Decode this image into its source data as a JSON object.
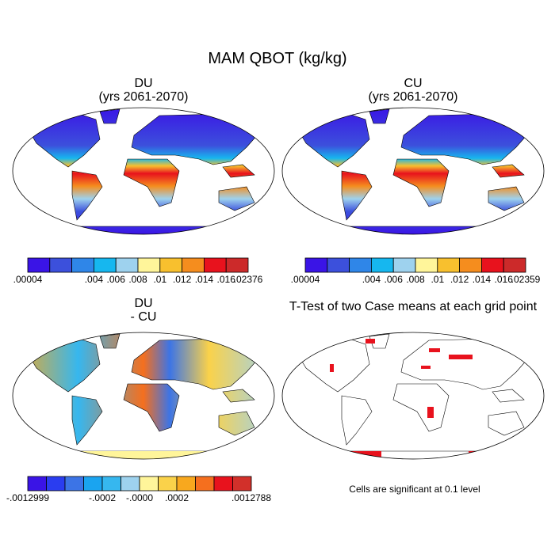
{
  "header": {
    "title": "MAM QBOT (kg/kg)"
  },
  "panels": [
    {
      "title": "DU",
      "subtitle": "(yrs 2061-2070)",
      "colorbar": {
        "colors": [
          "#3a14e6",
          "#3c50dc",
          "#2f86e8",
          "#16b7ef",
          "#9ed2ee",
          "#fff59a",
          "#f8c02e",
          "#f58d1e",
          "#e8121d",
          "#cc2a2a"
        ],
        "labels": [
          ".00004",
          null,
          null,
          ".004",
          ".006",
          ".008",
          ".01",
          ".012",
          ".014",
          ".016",
          ".02376"
        ]
      }
    },
    {
      "title": "CU",
      "subtitle": "(yrs 2061-2070)",
      "colorbar": {
        "colors": [
          "#3a14e6",
          "#3c50dc",
          "#2f86e8",
          "#16b7ef",
          "#9ed2ee",
          "#fff59a",
          "#f8c02e",
          "#f58d1e",
          "#e8121d",
          "#cc2a2a"
        ],
        "labels": [
          ".00004",
          null,
          null,
          ".004",
          ".006",
          ".008",
          ".01",
          ".012",
          ".014",
          ".016",
          ".02359"
        ]
      }
    },
    {
      "title": "DU",
      "subtitle": "- CU",
      "colorbar": {
        "colors": [
          "#3a14e6",
          "#2a3df0",
          "#3c74e6",
          "#1aa4f0",
          "#36b7ef",
          "#9ed2ee",
          "#fff59a",
          "#fad24a",
          "#f8a81e",
          "#f56f1e",
          "#e8121d",
          "#d2302a"
        ],
        "labels": [
          "-.0012999",
          null,
          null,
          null,
          "-.0002",
          null,
          "-.0000",
          null,
          ".0002",
          null,
          null,
          null,
          ".0012788"
        ]
      }
    },
    {
      "title": "T-Test of two Case means at each grid point",
      "note": "Cells are significant at 0.1 level"
    }
  ]
}
